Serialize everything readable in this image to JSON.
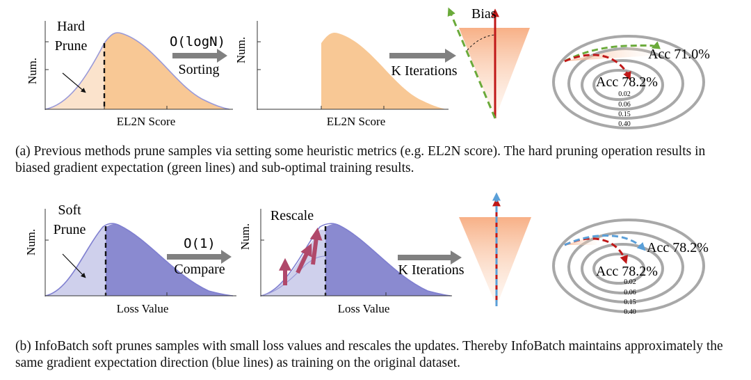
{
  "top": {
    "plot1": {
      "ylabel": "Num.",
      "xlabel": "EL2N Score",
      "prune_line1": "Hard",
      "prune_line2": "Prune"
    },
    "arrow1": {
      "complexity": "O(logN)",
      "label": "Sorting"
    },
    "plot2": {
      "ylabel": "Num.",
      "xlabel": "EL2N Score"
    },
    "arrow2": {
      "label": "K Iterations"
    },
    "cone": {
      "bias_label": "Bias"
    },
    "contour": {
      "acc_green": "Acc 71.0%",
      "acc_red": "Acc 78.2%",
      "levels": [
        "0.02",
        "0.06",
        "0.15",
        "0.40"
      ]
    },
    "caption": "(a) Previous methods prune samples via setting some heuristic metrics (e.g. EL2N score). The hard pruning operation results in biased gradient expectation (green lines) and sub-optimal training results."
  },
  "bottom": {
    "plot1": {
      "ylabel": "Num.",
      "xlabel": "Loss Value",
      "prune_line1": "Soft",
      "prune_line2": "Prune"
    },
    "arrow1": {
      "complexity": "O(1)",
      "label": "Compare"
    },
    "plot2": {
      "ylabel": "Num.",
      "xlabel": "Loss Value",
      "rescale_label": "Rescale"
    },
    "arrow2": {
      "label": "K Iterations"
    },
    "contour": {
      "acc_blue": "Acc 78.2%",
      "acc_red": "Acc 78.2%",
      "levels": [
        "0.02",
        "0.06",
        "0.15",
        "0.40"
      ]
    },
    "caption": "(b) InfoBatch soft prunes samples with small loss values and rescales the updates. Thereby InfoBatch maintains approximately the same gradient expectation direction (blue lines) as training on the original dataset."
  },
  "colors": {
    "orange_light": "#fbe3cc",
    "orange": "#f8c895",
    "purple_light": "#cfd0ec",
    "purple": "#8a8ad0",
    "curve": "#8f8fd6",
    "red": "#c01818",
    "green": "#6aaa3a",
    "blue": "#5a9fd8",
    "arrow_gray": "#7f7f7f",
    "rescale": "#b0486a"
  }
}
